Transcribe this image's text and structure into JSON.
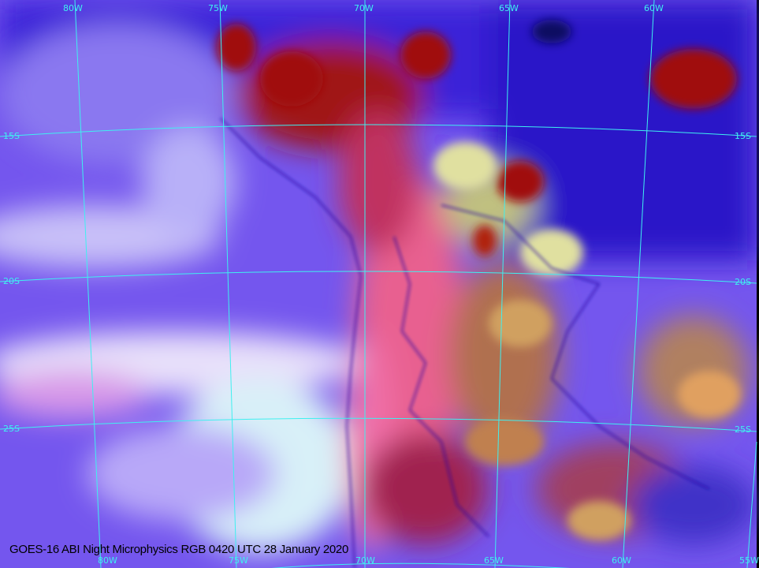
{
  "caption": "GOES-16 ABI Night Microphysics RGB 0420 UTC 28 January 2020",
  "grid_color": "#3ff0f0",
  "labels": {
    "top": [
      "80W",
      "75W",
      "70W",
      "65W",
      "60W"
    ],
    "bottom": [
      "80W",
      "75W",
      "70W",
      "65W",
      "60W",
      "55W"
    ],
    "left": [
      "15S",
      "20S",
      "25S"
    ],
    "right": [
      "15S",
      "20S",
      "25S"
    ]
  },
  "colors": {
    "ocean": "#7a5cf2",
    "low_cloud": "#d8f0f5",
    "land_clear": "#e8608a",
    "deep_convection": "#a01010",
    "cold_air": "#2a10c0"
  }
}
